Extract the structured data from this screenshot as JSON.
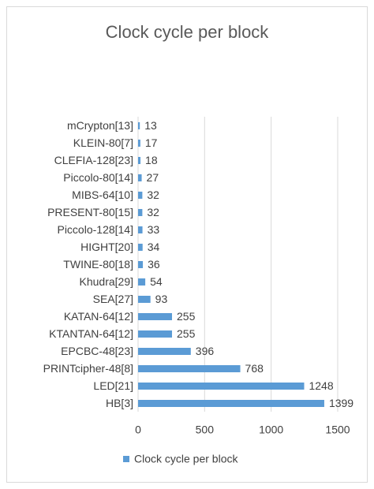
{
  "chart_data": {
    "type": "bar",
    "orientation": "horizontal",
    "title": "Clock cycle per block",
    "categories": [
      "mCrypton[13]",
      "KLEIN-80[7]",
      "CLEFIA-128[23]",
      "Piccolo-80[14]",
      "MIBS-64[10]",
      "PRESENT-80[15]",
      "Piccolo-128[14]",
      "HIGHT[20]",
      "TWINE-80[18]",
      "Khudra[29]",
      "SEA[27]",
      "KATAN-64[12]",
      "KTANTAN-64[12]",
      "EPCBC-48[23]",
      "PRINTcipher-48[8]",
      "LED[21]",
      "HB[3]"
    ],
    "series": [
      {
        "name": "Clock cycle per block",
        "color": "#5b9bd5",
        "values": [
          13,
          17,
          18,
          27,
          32,
          32,
          33,
          34,
          36,
          54,
          93,
          255,
          255,
          396,
          768,
          1248,
          1399
        ]
      }
    ],
    "xlim": [
      0,
      1500
    ],
    "xticks": [
      0,
      500,
      1000,
      1500
    ],
    "grid": true,
    "legend": "bottom"
  }
}
